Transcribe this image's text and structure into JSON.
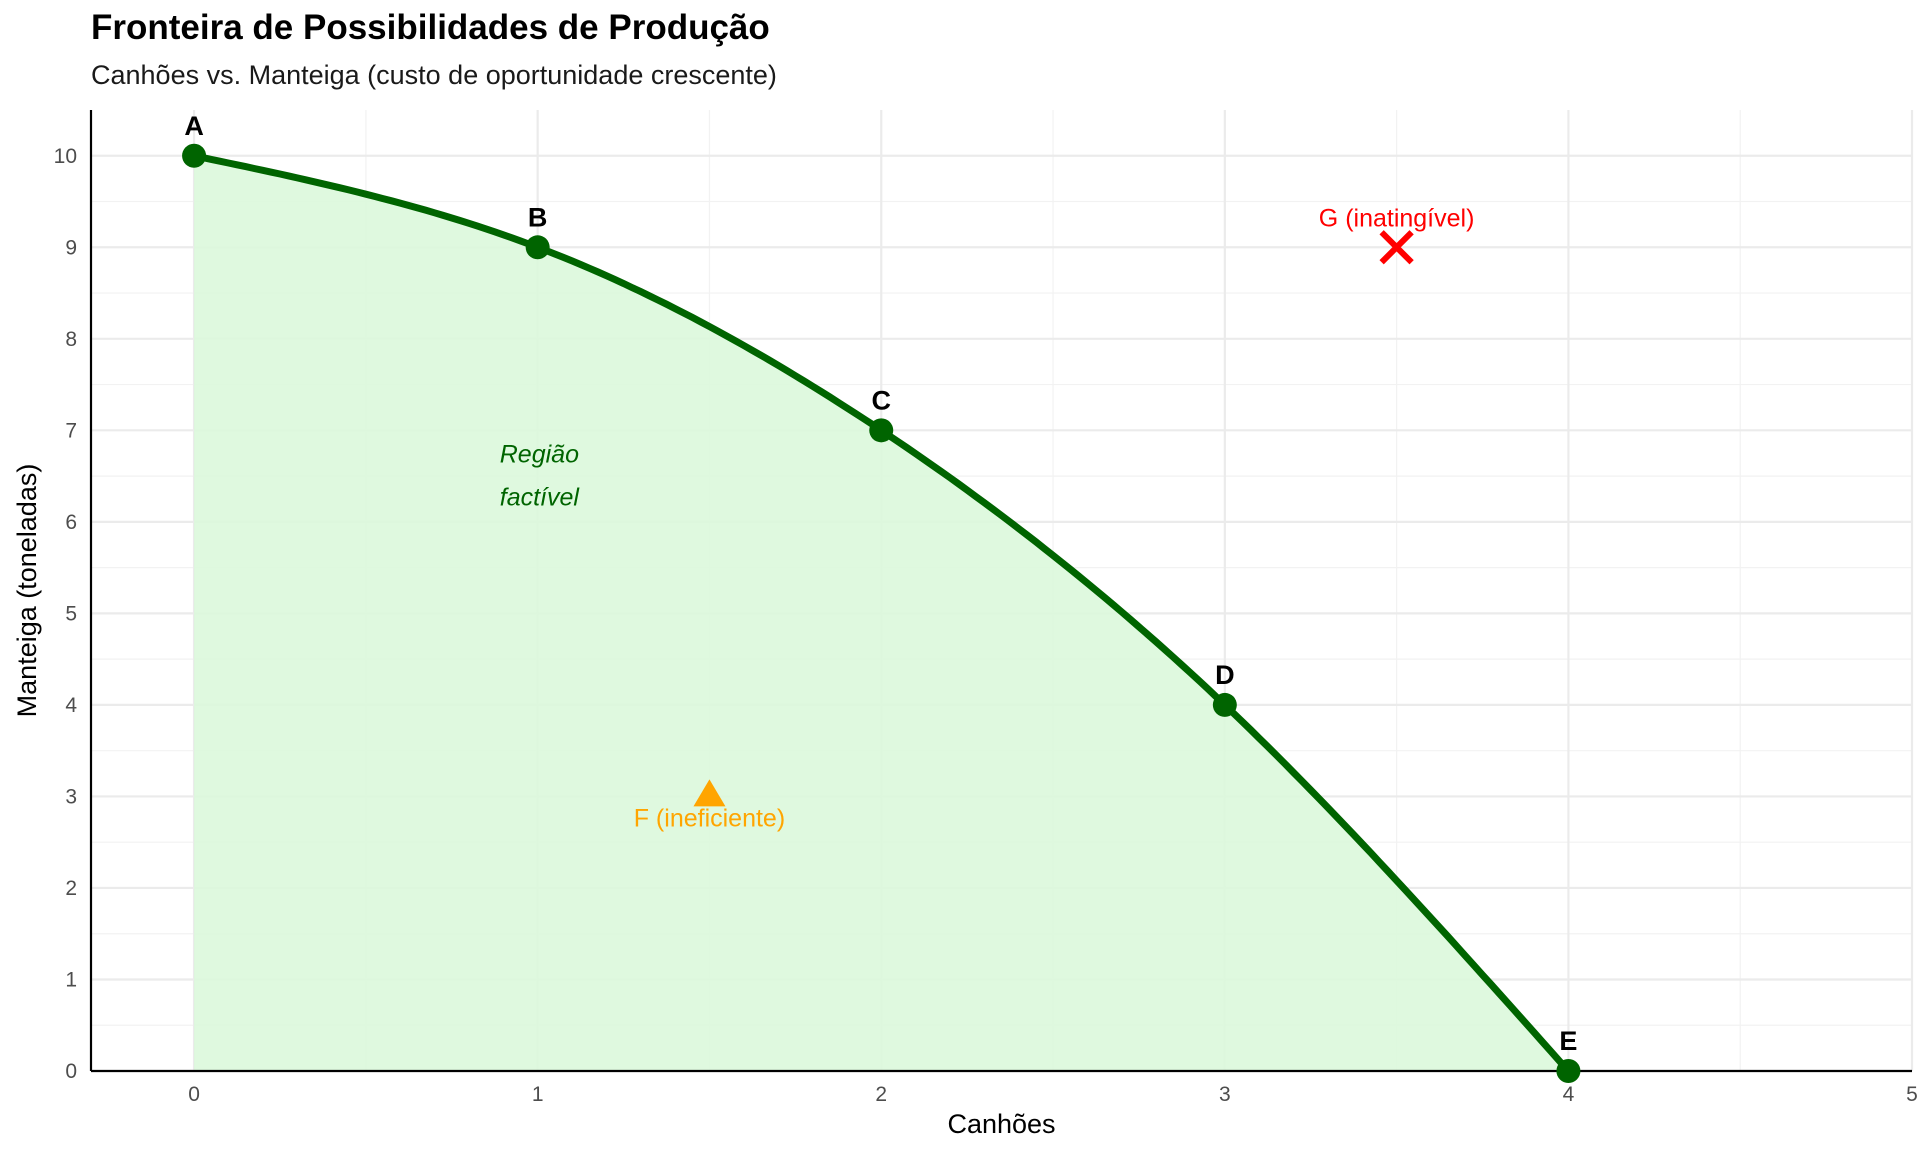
{
  "chart_data": {
    "type": "line",
    "title": "Fronteira de Possibilidades de Produção",
    "subtitle": "Canhões vs. Manteiga (custo de oportunidade crescente)",
    "xlabel": "Canhões",
    "ylabel": "Manteiga (toneladas)",
    "xlim": [
      -0.3,
      5
    ],
    "ylim": [
      0,
      10.5
    ],
    "xticks": [
      0,
      1,
      2,
      3,
      4,
      5
    ],
    "yticks": [
      0,
      1,
      2,
      3,
      4,
      5,
      6,
      7,
      8,
      9,
      10
    ],
    "grid": true,
    "frontier": {
      "points": [
        {
          "label": "A",
          "x": 0,
          "y": 10
        },
        {
          "label": "B",
          "x": 1,
          "y": 9
        },
        {
          "label": "C",
          "x": 2,
          "y": 7
        },
        {
          "label": "D",
          "x": 3,
          "y": 4
        },
        {
          "label": "E",
          "x": 4,
          "y": 0
        }
      ]
    },
    "annotations": {
      "feasible_region": [
        "Região",
        "factível"
      ],
      "inefficient": {
        "label": "F (ineficiente)",
        "x": 1.5,
        "y": 3
      },
      "unattainable": {
        "label": "G (inatingível)",
        "x": 3.5,
        "y": 9
      }
    },
    "colors": {
      "frontier": "#006400",
      "fill": "#dcf8dc",
      "inefficient": "#ffa500",
      "unattainable": "#ff0000",
      "grid": "#ebebeb"
    }
  }
}
